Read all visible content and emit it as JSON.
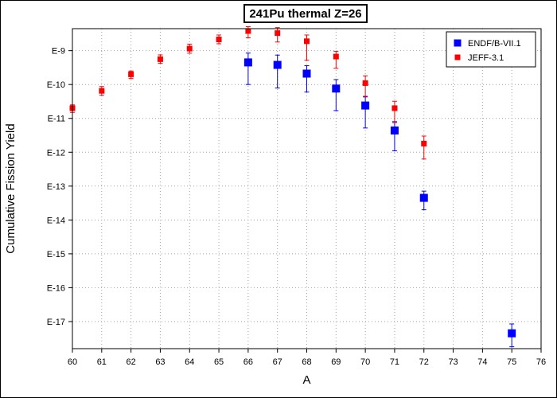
{
  "chart_data": {
    "type": "scatter",
    "title": "241Pu thermal Z=26",
    "xlabel": "A",
    "ylabel": "Cumulative Fission Yield",
    "xlim": [
      60,
      76
    ],
    "x_ticks": [
      60,
      61,
      62,
      63,
      64,
      65,
      66,
      67,
      68,
      69,
      70,
      71,
      72,
      73,
      74,
      75,
      76
    ],
    "y_scale": "log",
    "ylim_exponent": [
      -17.8,
      -8.35
    ],
    "y_ticks": [
      {
        "exp": -9,
        "label": "E-9"
      },
      {
        "exp": -10,
        "label": "E-10"
      },
      {
        "exp": -11,
        "label": "E-11"
      },
      {
        "exp": -12,
        "label": "E-12"
      },
      {
        "exp": -13,
        "label": "E-13"
      },
      {
        "exp": -14,
        "label": "E-14"
      },
      {
        "exp": -15,
        "label": "E-15"
      },
      {
        "exp": -16,
        "label": "E-16"
      },
      {
        "exp": -17,
        "label": "E-17"
      }
    ],
    "grid": true,
    "legend_position": "top-right",
    "series": [
      {
        "name": "ENDF/B-VII.1",
        "color": "#0000ff",
        "marker_size": "large",
        "points": [
          {
            "x": 66,
            "y": 4.5e-10,
            "y_lo": 1e-10,
            "y_hi": 8.5e-10
          },
          {
            "x": 67,
            "y": 3.8e-10,
            "y_lo": 7.9e-11,
            "y_hi": 7.4e-10
          },
          {
            "x": 68,
            "y": 2.1e-10,
            "y_lo": 6e-11,
            "y_hi": 3.6e-10
          },
          {
            "x": 69,
            "y": 7.6e-11,
            "y_lo": 1.7e-11,
            "y_hi": 1.4e-10
          },
          {
            "x": 70,
            "y": 2.4e-11,
            "y_lo": 5.2e-12,
            "y_hi": 4.3e-11
          },
          {
            "x": 71,
            "y": 4.4e-12,
            "y_lo": 1.1e-12,
            "y_hi": 8e-12
          },
          {
            "x": 72,
            "y": 4.5e-14,
            "y_lo": 2e-14,
            "y_hi": 7.1e-14
          },
          {
            "x": 75,
            "y": 4.5e-18,
            "y_lo": 1.8e-18,
            "y_hi": 8.5e-18
          }
        ]
      },
      {
        "name": "JEFF-3.1",
        "color": "#ff0000",
        "marker_size": "small",
        "points": [
          {
            "x": 60,
            "y": 2e-11,
            "y_lo": 1.5e-11,
            "y_hi": 2.5e-11
          },
          {
            "x": 61,
            "y": 6.5e-11,
            "y_lo": 4.8e-11,
            "y_hi": 8.7e-11
          },
          {
            "x": 62,
            "y": 2e-10,
            "y_lo": 1.5e-10,
            "y_hi": 2.5e-10
          },
          {
            "x": 63,
            "y": 5.6e-10,
            "y_lo": 4.2e-10,
            "y_hi": 7.5e-10
          },
          {
            "x": 64,
            "y": 1.15e-09,
            "y_lo": 8.4e-10,
            "y_hi": 1.55e-09
          },
          {
            "x": 65,
            "y": 2.15e-09,
            "y_lo": 1.6e-09,
            "y_hi": 2.9e-09
          },
          {
            "x": 66,
            "y": 3.8e-09,
            "y_lo": 2.4e-09,
            "y_hi": 5.1e-09
          },
          {
            "x": 67,
            "y": 3.3e-09,
            "y_lo": 1.8e-09,
            "y_hi": 4.8e-09
          },
          {
            "x": 68,
            "y": 1.9e-09,
            "y_lo": 5.2e-10,
            "y_hi": 2.9e-09
          },
          {
            "x": 69,
            "y": 6.7e-10,
            "y_lo": 3e-10,
            "y_hi": 9.6e-10
          },
          {
            "x": 70,
            "y": 1.1e-10,
            "y_lo": 4.5e-11,
            "y_hi": 1.8e-10
          },
          {
            "x": 71,
            "y": 2e-11,
            "y_lo": 7.5e-12,
            "y_hi": 3.2e-11
          },
          {
            "x": 72,
            "y": 1.8e-12,
            "y_lo": 6.3e-13,
            "y_hi": 3e-12
          }
        ]
      }
    ]
  }
}
